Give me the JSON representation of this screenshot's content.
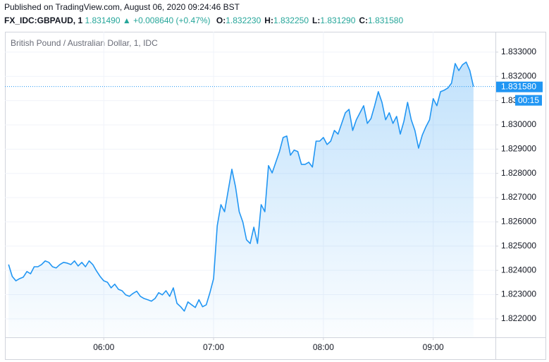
{
  "header": {
    "publisher": "Published on TradingView.com, August 06, 2020 09:24:46 BST",
    "symbol": "FX_IDC:GBPAUD, 1",
    "last": "1.831490",
    "change": "+0.008640 (+0.47%)",
    "ohlc": [
      {
        "label": "O:",
        "value": "1.832230"
      },
      {
        "label": "H:",
        "value": "1.832250"
      },
      {
        "label": "L:",
        "value": "1.831290"
      },
      {
        "label": "C:",
        "value": "1.831580"
      }
    ]
  },
  "chart_data": {
    "type": "area",
    "title": "British Pound / Australian Dollar, 1, IDC",
    "x": [
      "05:08",
      "05:10",
      "05:12",
      "05:14",
      "05:16",
      "05:18",
      "05:20",
      "05:22",
      "05:24",
      "05:26",
      "05:28",
      "05:30",
      "05:32",
      "05:34",
      "05:36",
      "05:38",
      "05:40",
      "05:42",
      "05:44",
      "05:46",
      "05:48",
      "05:50",
      "05:52",
      "05:54",
      "05:56",
      "05:58",
      "06:00",
      "06:02",
      "06:04",
      "06:06",
      "06:08",
      "06:10",
      "06:12",
      "06:14",
      "06:16",
      "06:18",
      "06:20",
      "06:22",
      "06:24",
      "06:26",
      "06:28",
      "06:30",
      "06:32",
      "06:34",
      "06:36",
      "06:38",
      "06:40",
      "06:42",
      "06:44",
      "06:46",
      "06:48",
      "06:50",
      "06:52",
      "06:54",
      "06:56",
      "06:58",
      "07:00",
      "07:02",
      "07:04",
      "07:06",
      "07:08",
      "07:10",
      "07:12",
      "07:14",
      "07:16",
      "07:18",
      "07:20",
      "07:22",
      "07:24",
      "07:26",
      "07:28",
      "07:30",
      "07:32",
      "07:34",
      "07:36",
      "07:38",
      "07:40",
      "07:42",
      "07:44",
      "07:46",
      "07:48",
      "07:50",
      "07:52",
      "07:54",
      "07:56",
      "07:58",
      "08:00",
      "08:02",
      "08:04",
      "08:06",
      "08:08",
      "08:10",
      "08:12",
      "08:14",
      "08:16",
      "08:18",
      "08:20",
      "08:22",
      "08:24",
      "08:26",
      "08:28",
      "08:30",
      "08:32",
      "08:34",
      "08:36",
      "08:38",
      "08:40",
      "08:42",
      "08:44",
      "08:46",
      "08:48",
      "08:50",
      "08:52",
      "08:54",
      "08:56",
      "08:58",
      "09:00",
      "09:02",
      "09:04",
      "09:06",
      "09:08",
      "09:10",
      "09:12",
      "09:14",
      "09:16",
      "09:18",
      "09:20",
      "09:22"
    ],
    "series": [
      {
        "name": "GBPAUD",
        "color": "#2196f3",
        "values": [
          1.82424,
          1.82375,
          1.82357,
          1.82366,
          1.82372,
          1.82395,
          1.82386,
          1.82415,
          1.82415,
          1.82424,
          1.82439,
          1.82433,
          1.82415,
          1.8241,
          1.82424,
          1.82433,
          1.8243,
          1.82424,
          1.82439,
          1.82418,
          1.82433,
          1.82415,
          1.82439,
          1.82424,
          1.82398,
          1.82375,
          1.82357,
          1.82351,
          1.82328,
          1.82343,
          1.82322,
          1.82316,
          1.82299,
          1.82293,
          1.82305,
          1.82314,
          1.82293,
          1.82284,
          1.82279,
          1.82273,
          1.82284,
          1.82308,
          1.82299,
          1.82316,
          1.82293,
          1.82328,
          1.82264,
          1.8225,
          1.82232,
          1.8227,
          1.82258,
          1.82247,
          1.82279,
          1.8225,
          1.82258,
          1.82308,
          1.82366,
          1.82584,
          1.82671,
          1.82642,
          1.8273,
          1.82817,
          1.82744,
          1.82642,
          1.82599,
          1.82526,
          1.82511,
          1.82578,
          1.82511,
          1.82671,
          1.82642,
          1.82832,
          1.82802,
          1.82846,
          1.8289,
          1.82948,
          1.82954,
          1.82875,
          1.82896,
          1.8289,
          1.82837,
          1.82837,
          1.82846,
          1.82826,
          1.82933,
          1.82933,
          1.82948,
          1.82919,
          1.82933,
          1.82977,
          1.82962,
          1.83006,
          1.8305,
          1.83064,
          1.82977,
          1.83021,
          1.8305,
          1.83079,
          1.83006,
          1.83026,
          1.83079,
          1.83137,
          1.83093,
          1.83021,
          1.8305,
          1.83006,
          1.83035,
          1.82962,
          1.83015,
          1.83093,
          1.83021,
          1.82977,
          1.82904,
          1.82957,
          1.82992,
          1.83021,
          1.83108,
          1.83079,
          1.83137,
          1.83143,
          1.83152,
          1.83172,
          1.83253,
          1.83224,
          1.83248,
          1.83259,
          1.83224,
          1.83158
        ]
      }
    ],
    "xlim": [
      "05:06",
      "09:34"
    ],
    "xticks": [
      "06:00",
      "07:00",
      "08:00",
      "09:00"
    ],
    "ylim": [
      1.82124,
      1.83384
    ],
    "yticks": [
      {
        "value": 1.822,
        "label": "1.822000"
      },
      {
        "value": 1.823,
        "label": "1.823000"
      },
      {
        "value": 1.824,
        "label": "1.824000"
      },
      {
        "value": 1.825,
        "label": "1.825000"
      },
      {
        "value": 1.826,
        "label": "1.826000"
      },
      {
        "value": 1.827,
        "label": "1.827000"
      },
      {
        "value": 1.828,
        "label": "1.828000"
      },
      {
        "value": 1.829,
        "label": "1.829000"
      },
      {
        "value": 1.83,
        "label": "1.830000"
      },
      {
        "value": 1.831,
        "label": "1.831000"
      },
      {
        "value": 1.832,
        "label": "1.832000"
      },
      {
        "value": 1.833,
        "label": "1.833000"
      }
    ],
    "last_price": {
      "value": 1.83158,
      "label": "1.831580"
    },
    "countdown": "00:15",
    "grid": true
  }
}
